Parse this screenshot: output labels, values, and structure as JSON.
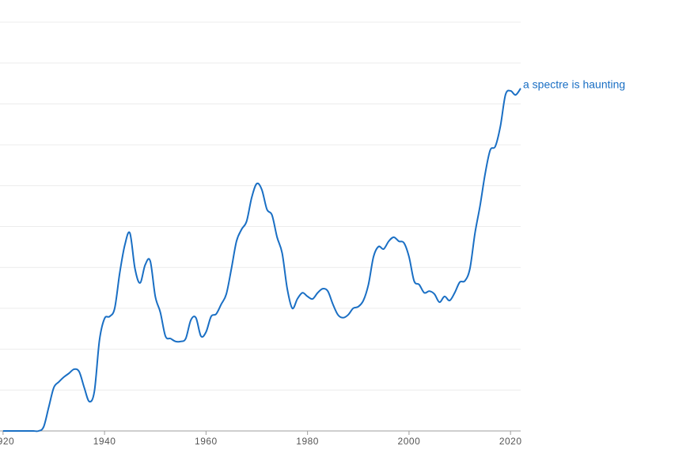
{
  "chart_data": {
    "type": "line",
    "x": [
      1920,
      1921,
      1922,
      1923,
      1924,
      1925,
      1926,
      1927,
      1928,
      1929,
      1930,
      1931,
      1932,
      1933,
      1934,
      1935,
      1936,
      1937,
      1938,
      1939,
      1940,
      1941,
      1942,
      1943,
      1944,
      1945,
      1946,
      1947,
      1948,
      1949,
      1950,
      1951,
      1952,
      1953,
      1954,
      1955,
      1956,
      1957,
      1958,
      1959,
      1960,
      1961,
      1962,
      1963,
      1964,
      1965,
      1966,
      1967,
      1968,
      1969,
      1970,
      1971,
      1972,
      1973,
      1974,
      1975,
      1976,
      1977,
      1978,
      1979,
      1980,
      1981,
      1982,
      1983,
      1984,
      1985,
      1986,
      1987,
      1988,
      1989,
      1990,
      1991,
      1992,
      1993,
      1994,
      1995,
      1996,
      1997,
      1998,
      1999,
      2000,
      2001,
      2002,
      2003,
      2004,
      2005,
      2006,
      2007,
      2008,
      2009,
      2010,
      2011,
      2012,
      2013,
      2014,
      2015,
      2016,
      2017,
      2018,
      2019,
      2020,
      2021,
      2022
    ],
    "series": [
      {
        "name": "a spectre is haunting",
        "color": "#1a6fc4",
        "values": [
          0,
          0,
          0,
          0,
          0,
          0,
          0,
          0,
          0.1,
          0.58,
          1.06,
          1.2,
          1.32,
          1.41,
          1.51,
          1.45,
          1.06,
          0.72,
          0.97,
          2.22,
          2.75,
          2.8,
          3.0,
          3.87,
          4.55,
          4.84,
          3.97,
          3.62,
          4.06,
          4.16,
          3.29,
          2.9,
          2.32,
          2.26,
          2.19,
          2.19,
          2.26,
          2.71,
          2.77,
          2.32,
          2.42,
          2.8,
          2.86,
          3.1,
          3.35,
          3.97,
          4.64,
          4.93,
          5.13,
          5.71,
          6.05,
          5.9,
          5.42,
          5.28,
          4.74,
          4.35,
          3.48,
          3.0,
          3.23,
          3.38,
          3.29,
          3.23,
          3.38,
          3.48,
          3.42,
          3.1,
          2.84,
          2.77,
          2.84,
          3.0,
          3.04,
          3.19,
          3.58,
          4.26,
          4.51,
          4.45,
          4.64,
          4.74,
          4.64,
          4.6,
          4.26,
          3.67,
          3.58,
          3.38,
          3.42,
          3.35,
          3.15,
          3.29,
          3.19,
          3.38,
          3.64,
          3.67,
          3.97,
          4.84,
          5.51,
          6.29,
          6.87,
          6.96,
          7.45,
          8.22,
          8.32,
          8.22,
          8.38
        ]
      }
    ],
    "xlim": [
      1919.4,
      2022
    ],
    "xticks": [
      1920,
      1940,
      1960,
      1980,
      2000,
      2020
    ],
    "ylim": [
      0,
      10
    ],
    "yticks": [
      1,
      2,
      3,
      4,
      5,
      6,
      7,
      8,
      9,
      10
    ],
    "grid": true
  }
}
